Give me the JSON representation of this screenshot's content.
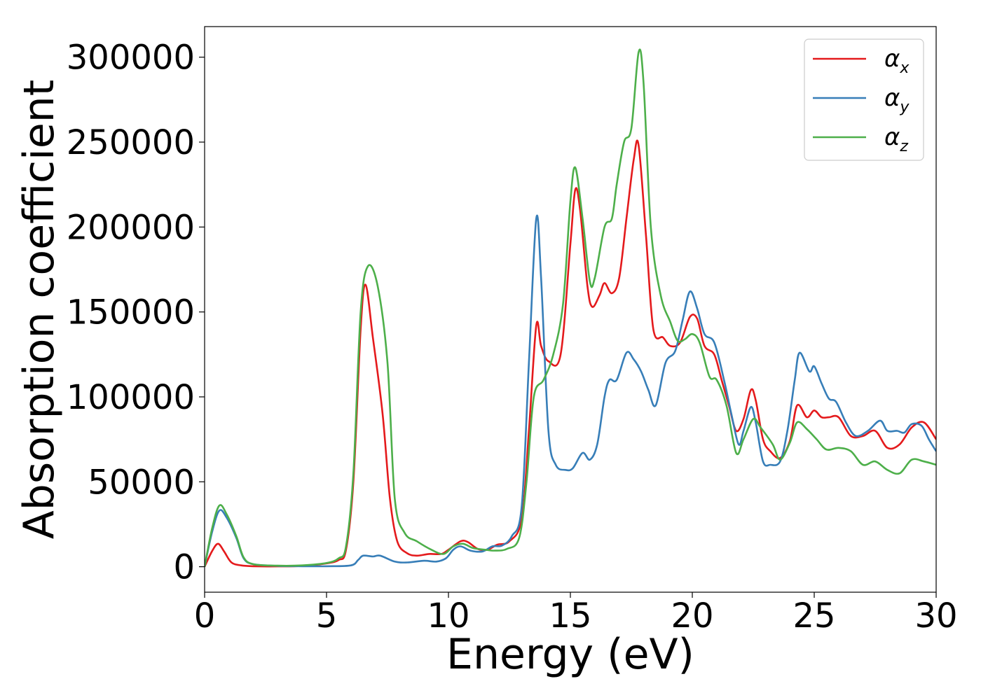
{
  "chart_data": {
    "type": "line",
    "xlabel": "Energy (eV)",
    "ylabel": "Absorption coefficient",
    "xlim": [
      0,
      30
    ],
    "ylim": [
      -15000,
      318000
    ],
    "xticks": [
      0,
      5,
      10,
      15,
      20,
      25,
      30
    ],
    "xtick_labels": [
      "0",
      "5",
      "10",
      "15",
      "20",
      "25",
      "30"
    ],
    "yticks": [
      0,
      50000,
      100000,
      150000,
      200000,
      250000,
      300000
    ],
    "ytick_labels": [
      "0",
      "50000",
      "100000",
      "150000",
      "200000",
      "250000",
      "300000"
    ],
    "grid": false,
    "legend_position": "top-right",
    "series": [
      {
        "name": "αx",
        "base": "α",
        "sub": "x",
        "color": "#e41a1c",
        "points": [
          [
            0,
            0
          ],
          [
            0.3,
            9000
          ],
          [
            0.55,
            13500
          ],
          [
            0.8,
            9000
          ],
          [
            1.1,
            2500
          ],
          [
            1.5,
            800
          ],
          [
            2,
            300
          ],
          [
            3,
            200
          ],
          [
            4,
            500
          ],
          [
            5,
            2000
          ],
          [
            5.5,
            4000
          ],
          [
            5.8,
            10000
          ],
          [
            6.1,
            50000
          ],
          [
            6.4,
            140000
          ],
          [
            6.6,
            166000
          ],
          [
            6.9,
            135000
          ],
          [
            7.3,
            90000
          ],
          [
            7.6,
            40000
          ],
          [
            7.9,
            15000
          ],
          [
            8.3,
            8000
          ],
          [
            8.7,
            6500
          ],
          [
            9.2,
            7500
          ],
          [
            9.7,
            7500
          ],
          [
            10,
            10000
          ],
          [
            10.5,
            15000
          ],
          [
            10.8,
            14500
          ],
          [
            11.2,
            10500
          ],
          [
            11.6,
            10000
          ],
          [
            12.0,
            13000
          ],
          [
            12.5,
            15000
          ],
          [
            13.0,
            28000
          ],
          [
            13.3,
            80000
          ],
          [
            13.6,
            142000
          ],
          [
            13.8,
            130000
          ],
          [
            14.1,
            121000
          ],
          [
            14.6,
            125000
          ],
          [
            15.0,
            190000
          ],
          [
            15.2,
            222000
          ],
          [
            15.4,
            210000
          ],
          [
            15.7,
            165000
          ],
          [
            15.9,
            153000
          ],
          [
            16.2,
            160000
          ],
          [
            16.4,
            167000
          ],
          [
            16.7,
            161000
          ],
          [
            17.0,
            170000
          ],
          [
            17.3,
            205000
          ],
          [
            17.6,
            240000
          ],
          [
            17.8,
            248000
          ],
          [
            18.1,
            195000
          ],
          [
            18.4,
            140000
          ],
          [
            18.8,
            135000
          ],
          [
            19.1,
            130000
          ],
          [
            19.5,
            132000
          ],
          [
            19.9,
            147000
          ],
          [
            20.2,
            146000
          ],
          [
            20.5,
            130000
          ],
          [
            20.9,
            125000
          ],
          [
            21.2,
            110000
          ],
          [
            21.5,
            95000
          ],
          [
            21.8,
            80000
          ],
          [
            22.1,
            87000
          ],
          [
            22.4,
            104000
          ],
          [
            22.6,
            98000
          ],
          [
            22.9,
            75000
          ],
          [
            23.2,
            68000
          ],
          [
            23.6,
            64000
          ],
          [
            24.0,
            74000
          ],
          [
            24.3,
            95000
          ],
          [
            24.7,
            88000
          ],
          [
            25.0,
            92000
          ],
          [
            25.3,
            88000
          ],
          [
            25.6,
            88000
          ],
          [
            26.0,
            88000
          ],
          [
            26.5,
            77000
          ],
          [
            27.0,
            77000
          ],
          [
            27.5,
            80000
          ],
          [
            28.0,
            70000
          ],
          [
            28.5,
            72000
          ],
          [
            29.0,
            82000
          ],
          [
            29.5,
            85000
          ],
          [
            30.0,
            75000
          ]
        ]
      },
      {
        "name": "αy",
        "base": "α",
        "sub": "y",
        "color": "#377eb8",
        "points": [
          [
            0,
            0
          ],
          [
            0.3,
            20000
          ],
          [
            0.6,
            33000
          ],
          [
            0.9,
            29000
          ],
          [
            1.3,
            17000
          ],
          [
            1.6,
            5000
          ],
          [
            2,
            1500
          ],
          [
            3,
            500
          ],
          [
            4,
            300
          ],
          [
            5,
            300
          ],
          [
            6,
            800
          ],
          [
            6.3,
            4000
          ],
          [
            6.5,
            6500
          ],
          [
            6.9,
            6000
          ],
          [
            7.2,
            6500
          ],
          [
            7.8,
            3000
          ],
          [
            8.3,
            2500
          ],
          [
            9.0,
            3500
          ],
          [
            9.5,
            3000
          ],
          [
            9.9,
            5000
          ],
          [
            10.2,
            10000
          ],
          [
            10.5,
            12000
          ],
          [
            10.9,
            9500
          ],
          [
            11.4,
            9000
          ],
          [
            11.8,
            12000
          ],
          [
            12.2,
            12500
          ],
          [
            12.6,
            18000
          ],
          [
            13.0,
            35000
          ],
          [
            13.3,
            120000
          ],
          [
            13.6,
            205000
          ],
          [
            13.8,
            170000
          ],
          [
            14.1,
            80000
          ],
          [
            14.4,
            60000
          ],
          [
            14.8,
            57000
          ],
          [
            15.1,
            58000
          ],
          [
            15.5,
            67000
          ],
          [
            15.8,
            63000
          ],
          [
            16.1,
            72000
          ],
          [
            16.4,
            100000
          ],
          [
            16.6,
            110000
          ],
          [
            16.9,
            110000
          ],
          [
            17.3,
            126000
          ],
          [
            17.6,
            122000
          ],
          [
            17.9,
            115000
          ],
          [
            18.2,
            104000
          ],
          [
            18.5,
            95000
          ],
          [
            18.9,
            120000
          ],
          [
            19.3,
            127000
          ],
          [
            19.6,
            145000
          ],
          [
            19.9,
            162000
          ],
          [
            20.2,
            152000
          ],
          [
            20.5,
            137000
          ],
          [
            20.9,
            132000
          ],
          [
            21.3,
            110000
          ],
          [
            21.6,
            90000
          ],
          [
            21.9,
            72000
          ],
          [
            22.1,
            80000
          ],
          [
            22.4,
            94000
          ],
          [
            22.6,
            85000
          ],
          [
            22.9,
            62000
          ],
          [
            23.2,
            60000
          ],
          [
            23.6,
            62000
          ],
          [
            23.9,
            80000
          ],
          [
            24.2,
            110000
          ],
          [
            24.4,
            126000
          ],
          [
            24.8,
            115000
          ],
          [
            25.0,
            118000
          ],
          [
            25.3,
            108000
          ],
          [
            25.6,
            99000
          ],
          [
            25.9,
            97000
          ],
          [
            26.3,
            85000
          ],
          [
            26.7,
            77000
          ],
          [
            27.2,
            80000
          ],
          [
            27.7,
            86000
          ],
          [
            28.0,
            80000
          ],
          [
            28.4,
            80000
          ],
          [
            28.7,
            79000
          ],
          [
            29.0,
            84000
          ],
          [
            29.4,
            83000
          ],
          [
            29.7,
            75000
          ],
          [
            30.0,
            68000
          ]
        ]
      },
      {
        "name": "αz",
        "base": "α",
        "sub": "z",
        "color": "#4daf4a",
        "points": [
          [
            0,
            0
          ],
          [
            0.3,
            22000
          ],
          [
            0.6,
            36000
          ],
          [
            0.9,
            31000
          ],
          [
            1.3,
            18000
          ],
          [
            1.6,
            5500
          ],
          [
            2,
            1500
          ],
          [
            3,
            600
          ],
          [
            4,
            800
          ],
          [
            5,
            2200
          ],
          [
            5.5,
            5000
          ],
          [
            5.8,
            12000
          ],
          [
            6.1,
            55000
          ],
          [
            6.4,
            150000
          ],
          [
            6.7,
            177000
          ],
          [
            7.1,
            165000
          ],
          [
            7.5,
            120000
          ],
          [
            7.8,
            40000
          ],
          [
            8.2,
            20000
          ],
          [
            8.7,
            15000
          ],
          [
            9.3,
            10000
          ],
          [
            9.8,
            7500
          ],
          [
            10.2,
            12000
          ],
          [
            10.6,
            13500
          ],
          [
            11.0,
            11000
          ],
          [
            11.5,
            10000
          ],
          [
            11.9,
            9500
          ],
          [
            12.4,
            10500
          ],
          [
            12.9,
            17000
          ],
          [
            13.2,
            50000
          ],
          [
            13.5,
            100000
          ],
          [
            13.9,
            110000
          ],
          [
            14.3,
            125000
          ],
          [
            14.7,
            155000
          ],
          [
            15.0,
            215000
          ],
          [
            15.2,
            235000
          ],
          [
            15.5,
            205000
          ],
          [
            15.8,
            168000
          ],
          [
            16.0,
            170000
          ],
          [
            16.4,
            200000
          ],
          [
            16.7,
            205000
          ],
          [
            16.9,
            225000
          ],
          [
            17.2,
            250000
          ],
          [
            17.5,
            258000
          ],
          [
            17.8,
            303000
          ],
          [
            18.0,
            285000
          ],
          [
            18.3,
            200000
          ],
          [
            18.7,
            160000
          ],
          [
            19.1,
            144000
          ],
          [
            19.4,
            133000
          ],
          [
            19.7,
            134000
          ],
          [
            20.0,
            137000
          ],
          [
            20.3,
            132000
          ],
          [
            20.7,
            112000
          ],
          [
            21.0,
            110000
          ],
          [
            21.4,
            95000
          ],
          [
            21.8,
            67000
          ],
          [
            22.1,
            75000
          ],
          [
            22.5,
            87000
          ],
          [
            22.8,
            82000
          ],
          [
            23.3,
            72000
          ],
          [
            23.6,
            63000
          ],
          [
            24.0,
            73000
          ],
          [
            24.3,
            85000
          ],
          [
            24.7,
            81000
          ],
          [
            25.1,
            75000
          ],
          [
            25.5,
            69000
          ],
          [
            26.0,
            70000
          ],
          [
            26.5,
            68000
          ],
          [
            27.0,
            60000
          ],
          [
            27.5,
            62000
          ],
          [
            28.0,
            57000
          ],
          [
            28.5,
            55000
          ],
          [
            29.0,
            63000
          ],
          [
            29.5,
            62000
          ],
          [
            30.0,
            60000
          ]
        ]
      }
    ]
  }
}
